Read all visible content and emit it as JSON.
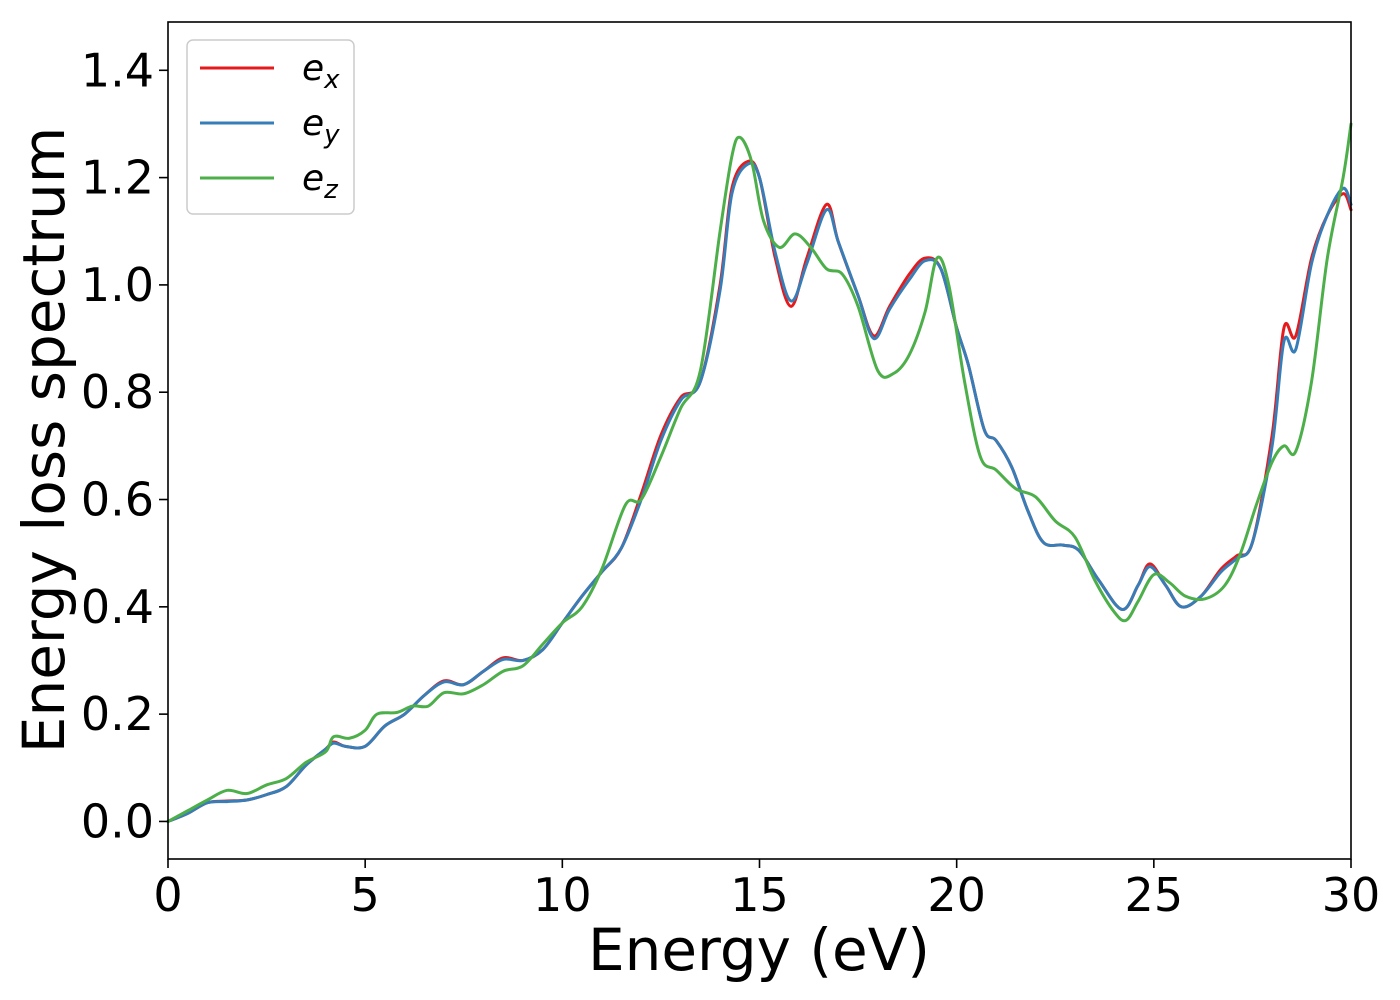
{
  "chart_data": {
    "type": "line",
    "title": "",
    "xlabel": "Energy (eV)",
    "ylabel": "Energy loss spectrum",
    "xlim": [
      0,
      30
    ],
    "ylim": [
      -0.07,
      1.49
    ],
    "xticks": [
      0,
      5,
      10,
      15,
      20,
      25,
      30
    ],
    "xtick_labels": [
      "0",
      "5",
      "10",
      "15",
      "20",
      "25",
      "30"
    ],
    "yticks": [
      0.0,
      0.2,
      0.4,
      0.6,
      0.8,
      1.0,
      1.2,
      1.4
    ],
    "ytick_labels": [
      "0.0",
      "0.2",
      "0.4",
      "0.6",
      "0.8",
      "1.0",
      "1.2",
      "1.4"
    ],
    "grid": false,
    "legend_position": "top-left",
    "series": [
      {
        "name": "e_x",
        "label_base": "e",
        "label_sub": "x",
        "color": "#e41a1c",
        "x": [
          0,
          0.5,
          1,
          1.5,
          2,
          2.5,
          3,
          3.5,
          4,
          4.2,
          4.5,
          5,
          5.5,
          6,
          6.5,
          7,
          7.5,
          8,
          8.5,
          9,
          9.5,
          10,
          10.5,
          11,
          11.5,
          12,
          12.5,
          13,
          13.5,
          14,
          14.3,
          14.7,
          15,
          15.4,
          15.8,
          16.2,
          16.7,
          17,
          17.5,
          17.9,
          18.3,
          18.8,
          19.2,
          19.6,
          20,
          20.3,
          20.7,
          21,
          21.4,
          21.8,
          22.2,
          22.7,
          23.1,
          23.6,
          24.2,
          24.6,
          24.9,
          25.3,
          25.7,
          26.2,
          26.7,
          27.1,
          27.5,
          28,
          28.3,
          28.6,
          29,
          29.4,
          29.8,
          30
        ],
        "y": [
          0.0,
          0.015,
          0.035,
          0.038,
          0.04,
          0.05,
          0.065,
          0.105,
          0.135,
          0.148,
          0.14,
          0.14,
          0.178,
          0.2,
          0.235,
          0.262,
          0.255,
          0.28,
          0.305,
          0.3,
          0.32,
          0.37,
          0.42,
          0.465,
          0.51,
          0.61,
          0.72,
          0.79,
          0.82,
          1.0,
          1.18,
          1.23,
          1.2,
          1.05,
          0.96,
          1.05,
          1.15,
          1.08,
          0.98,
          0.905,
          0.96,
          1.02,
          1.05,
          1.03,
          0.92,
          0.85,
          0.73,
          0.71,
          0.66,
          0.58,
          0.52,
          0.515,
          0.505,
          0.45,
          0.395,
          0.44,
          0.48,
          0.44,
          0.4,
          0.42,
          0.47,
          0.495,
          0.52,
          0.72,
          0.92,
          0.905,
          1.05,
          1.13,
          1.17,
          1.14
        ]
      },
      {
        "name": "e_y",
        "label_base": "e",
        "label_sub": "y",
        "color": "#377eb8",
        "x": [
          0,
          0.5,
          1,
          1.5,
          2,
          2.5,
          3,
          3.5,
          4,
          4.2,
          4.5,
          5,
          5.5,
          6,
          6.5,
          7,
          7.5,
          8,
          8.5,
          9,
          9.5,
          10,
          10.5,
          11,
          11.5,
          12,
          12.5,
          13,
          13.5,
          14,
          14.3,
          14.7,
          15,
          15.4,
          15.8,
          16.2,
          16.7,
          17,
          17.5,
          17.9,
          18.3,
          18.8,
          19.2,
          19.6,
          20,
          20.3,
          20.7,
          21,
          21.4,
          21.8,
          22.2,
          22.7,
          23.1,
          23.6,
          24.2,
          24.6,
          24.9,
          25.3,
          25.7,
          26.2,
          26.7,
          27.1,
          27.5,
          28,
          28.3,
          28.6,
          29,
          29.4,
          29.8,
          30
        ],
        "y": [
          0.0,
          0.015,
          0.035,
          0.037,
          0.04,
          0.05,
          0.065,
          0.105,
          0.135,
          0.146,
          0.14,
          0.14,
          0.178,
          0.2,
          0.235,
          0.26,
          0.255,
          0.28,
          0.302,
          0.3,
          0.32,
          0.37,
          0.42,
          0.465,
          0.51,
          0.6,
          0.71,
          0.785,
          0.82,
          0.99,
          1.17,
          1.225,
          1.2,
          1.06,
          0.97,
          1.04,
          1.14,
          1.08,
          0.98,
          0.9,
          0.955,
          1.01,
          1.045,
          1.03,
          0.92,
          0.85,
          0.73,
          0.71,
          0.66,
          0.58,
          0.52,
          0.515,
          0.505,
          0.45,
          0.395,
          0.44,
          0.475,
          0.44,
          0.4,
          0.42,
          0.465,
          0.49,
          0.52,
          0.7,
          0.895,
          0.88,
          1.04,
          1.13,
          1.18,
          1.15
        ]
      },
      {
        "name": "e_z",
        "label_base": "e",
        "label_sub": "z",
        "color": "#4daf4a",
        "x": [
          0,
          0.5,
          1,
          1.5,
          2,
          2.5,
          3,
          3.5,
          4,
          4.2,
          4.6,
          5,
          5.3,
          5.8,
          6.2,
          6.6,
          7,
          7.5,
          8,
          8.5,
          9,
          9.5,
          10,
          10.5,
          11,
          11.6,
          12,
          12.5,
          13,
          13.5,
          14,
          14.3,
          14.5,
          14.8,
          15.1,
          15.5,
          15.9,
          16.3,
          16.7,
          17.1,
          17.5,
          18,
          18.4,
          18.8,
          19.2,
          19.5,
          19.8,
          20.2,
          20.6,
          21,
          21.5,
          22,
          22.5,
          23,
          23.5,
          24,
          24.3,
          24.6,
          25,
          25.4,
          25.8,
          26.3,
          26.8,
          27.2,
          27.6,
          28,
          28.3,
          28.6,
          29,
          29.4,
          29.8,
          30
        ],
        "y": [
          0.0,
          0.02,
          0.04,
          0.058,
          0.052,
          0.068,
          0.08,
          0.11,
          0.13,
          0.158,
          0.155,
          0.17,
          0.2,
          0.203,
          0.215,
          0.215,
          0.24,
          0.238,
          0.255,
          0.28,
          0.29,
          0.33,
          0.37,
          0.4,
          0.47,
          0.59,
          0.6,
          0.68,
          0.77,
          0.84,
          1.1,
          1.24,
          1.275,
          1.23,
          1.12,
          1.07,
          1.095,
          1.07,
          1.03,
          1.02,
          0.96,
          0.84,
          0.835,
          0.87,
          0.95,
          1.05,
          1.0,
          0.82,
          0.68,
          0.655,
          0.62,
          0.605,
          0.56,
          0.53,
          0.45,
          0.39,
          0.375,
          0.41,
          0.46,
          0.445,
          0.42,
          0.415,
          0.44,
          0.5,
          0.59,
          0.67,
          0.7,
          0.69,
          0.82,
          1.05,
          1.2,
          1.3
        ]
      }
    ]
  }
}
